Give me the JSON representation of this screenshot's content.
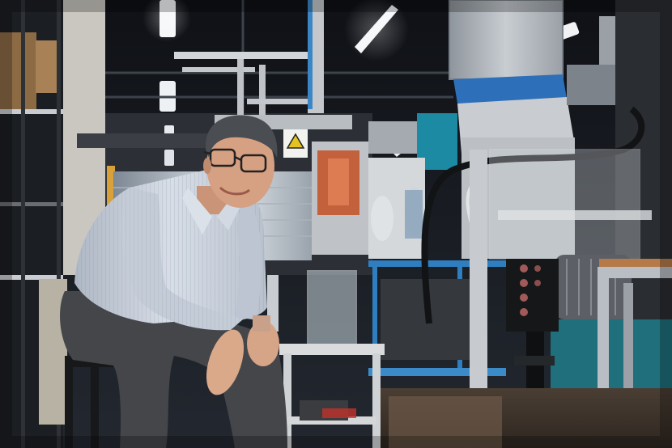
{
  "photo": {
    "subject": "man-seated-in-laboratory",
    "setting": "engineering-lab-with-equipment",
    "colors": {
      "ceiling": "#151820",
      "floor": "#5a4a3c",
      "shirt": "#c9d2de",
      "trousers": "#4a4a48",
      "blue_accent": "#2f7fc0",
      "duct": "#b9bec4",
      "orange_panel": "#c2613c",
      "warning_sign": "#e4c21f"
    },
    "icons": [
      "warning-triangle-icon"
    ]
  }
}
